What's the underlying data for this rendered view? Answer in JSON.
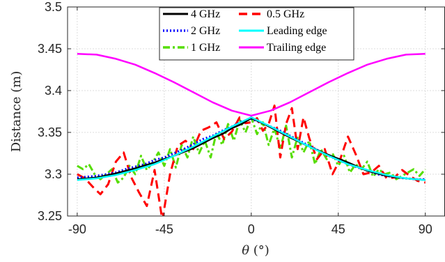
{
  "chart_data": {
    "type": "line",
    "title": "",
    "xlabel": "θ (°)",
    "ylabel": "Distance (m)",
    "xlim": [
      -95,
      100
    ],
    "ylim": [
      3.25,
      3.5
    ],
    "xticks": [
      -90,
      -45,
      0,
      45,
      90
    ],
    "xtick_labels": [
      "-90",
      "-45",
      "0",
      "45",
      "90"
    ],
    "yticks": [
      3.25,
      3.3,
      3.35,
      3.4,
      3.45,
      3.5
    ],
    "ytick_labels": [
      "3.25",
      "3.3",
      "3.35",
      "3.4",
      "3.45",
      "3.5"
    ],
    "grid": true,
    "legend_position": "top-center",
    "legend_columns": 2,
    "series": [
      {
        "name": "4 GHz",
        "color": "#000000",
        "dash": "solid",
        "x": [
          -90,
          -80,
          -70,
          -60,
          -50,
          -40,
          -30,
          -20,
          -15,
          -10,
          -5,
          0,
          5,
          10,
          15,
          20,
          30,
          40,
          50,
          60,
          70,
          80,
          90
        ],
        "y": [
          3.294,
          3.296,
          3.301,
          3.307,
          3.314,
          3.322,
          3.331,
          3.343,
          3.348,
          3.355,
          3.36,
          3.367,
          3.362,
          3.356,
          3.35,
          3.344,
          3.333,
          3.323,
          3.314,
          3.304,
          3.298,
          3.295,
          3.293
        ]
      },
      {
        "name": "0.5 GHz",
        "color": "#ff0000",
        "dash": "dashed",
        "x": [
          -90,
          -86,
          -82,
          -78,
          -74,
          -70,
          -66,
          -62,
          -58,
          -54,
          -50,
          -46,
          -42,
          -38,
          -34,
          -30,
          -26,
          -22,
          -18,
          -14,
          -10,
          -6,
          -3,
          0,
          3,
          6,
          9,
          12,
          15,
          18,
          21,
          24,
          27,
          30,
          34,
          38,
          42,
          46,
          50,
          54,
          58,
          62,
          66,
          70,
          74,
          78,
          82,
          86,
          90
        ],
        "y": [
          3.3,
          3.295,
          3.285,
          3.276,
          3.288,
          3.315,
          3.326,
          3.296,
          3.278,
          3.262,
          3.305,
          3.245,
          3.3,
          3.334,
          3.34,
          3.33,
          3.352,
          3.356,
          3.362,
          3.342,
          3.351,
          3.368,
          3.361,
          3.362,
          3.367,
          3.352,
          3.36,
          3.382,
          3.32,
          3.36,
          3.379,
          3.33,
          3.368,
          3.343,
          3.318,
          3.33,
          3.3,
          3.318,
          3.345,
          3.324,
          3.3,
          3.302,
          3.31,
          3.295,
          3.296,
          3.305,
          3.298,
          3.292,
          3.29
        ]
      },
      {
        "name": "2 GHz",
        "color": "#0000ff",
        "dash": "dotted",
        "x": [
          -90,
          -85,
          -80,
          -75,
          -70,
          -65,
          -60,
          -55,
          -50,
          -45,
          -40,
          -35,
          -30,
          -25,
          -20,
          -15,
          -10,
          -5,
          0,
          5,
          10,
          15,
          20,
          25,
          30,
          35,
          40,
          45,
          50,
          55,
          60,
          65,
          70,
          75,
          80,
          85,
          90
        ],
        "y": [
          3.296,
          3.297,
          3.298,
          3.3,
          3.302,
          3.306,
          3.309,
          3.312,
          3.317,
          3.32,
          3.325,
          3.33,
          3.336,
          3.342,
          3.346,
          3.352,
          3.357,
          3.363,
          3.366,
          3.362,
          3.357,
          3.352,
          3.346,
          3.34,
          3.334,
          3.328,
          3.322,
          3.317,
          3.312,
          3.308,
          3.305,
          3.3,
          3.298,
          3.296,
          3.295,
          3.294,
          3.294
        ]
      },
      {
        "name": "Leading edge",
        "color": "#00ffff",
        "dash": "solid",
        "x": [
          -90,
          -80,
          -70,
          -60,
          -50,
          -40,
          -30,
          -20,
          -10,
          0,
          10,
          20,
          30,
          40,
          50,
          60,
          70,
          80,
          90
        ],
        "y": [
          3.293,
          3.295,
          3.299,
          3.305,
          3.312,
          3.322,
          3.333,
          3.345,
          3.357,
          3.368,
          3.357,
          3.345,
          3.333,
          3.322,
          3.312,
          3.305,
          3.299,
          3.295,
          3.293
        ]
      },
      {
        "name": "1 GHz",
        "color": "#55dd00",
        "dash": "dashdot",
        "x": [
          -90,
          -87,
          -84,
          -81,
          -78,
          -75,
          -72,
          -69,
          -66,
          -63,
          -60,
          -57,
          -54,
          -51,
          -48,
          -45,
          -42,
          -39,
          -36,
          -33,
          -30,
          -27,
          -24,
          -21,
          -18,
          -15,
          -12,
          -9,
          -6,
          -3,
          0,
          3,
          6,
          9,
          12,
          15,
          18,
          21,
          24,
          27,
          30,
          33,
          36,
          39,
          42,
          45,
          48,
          51,
          54,
          57,
          60,
          63,
          66,
          69,
          72,
          75,
          78,
          81,
          84,
          87,
          90
        ],
        "y": [
          3.31,
          3.306,
          3.312,
          3.3,
          3.294,
          3.3,
          3.306,
          3.29,
          3.296,
          3.31,
          3.3,
          3.322,
          3.305,
          3.314,
          3.326,
          3.31,
          3.33,
          3.308,
          3.335,
          3.32,
          3.345,
          3.325,
          3.34,
          3.32,
          3.35,
          3.335,
          3.36,
          3.34,
          3.365,
          3.35,
          3.368,
          3.348,
          3.362,
          3.335,
          3.355,
          3.33,
          3.358,
          3.32,
          3.345,
          3.326,
          3.34,
          3.312,
          3.33,
          3.318,
          3.325,
          3.31,
          3.322,
          3.302,
          3.312,
          3.306,
          3.315,
          3.297,
          3.306,
          3.3,
          3.302,
          3.294,
          3.298,
          3.302,
          3.306,
          3.298,
          3.306
        ]
      },
      {
        "name": "Trailing edge",
        "color": "#ff00ff",
        "dash": "solid",
        "x": [
          -90,
          -80,
          -70,
          -60,
          -50,
          -40,
          -30,
          -20,
          -10,
          0,
          10,
          20,
          30,
          40,
          50,
          60,
          70,
          80,
          90
        ],
        "y": [
          3.444,
          3.443,
          3.438,
          3.431,
          3.421,
          3.41,
          3.398,
          3.386,
          3.376,
          3.37,
          3.376,
          3.386,
          3.398,
          3.41,
          3.421,
          3.431,
          3.438,
          3.443,
          3.444
        ]
      }
    ]
  }
}
